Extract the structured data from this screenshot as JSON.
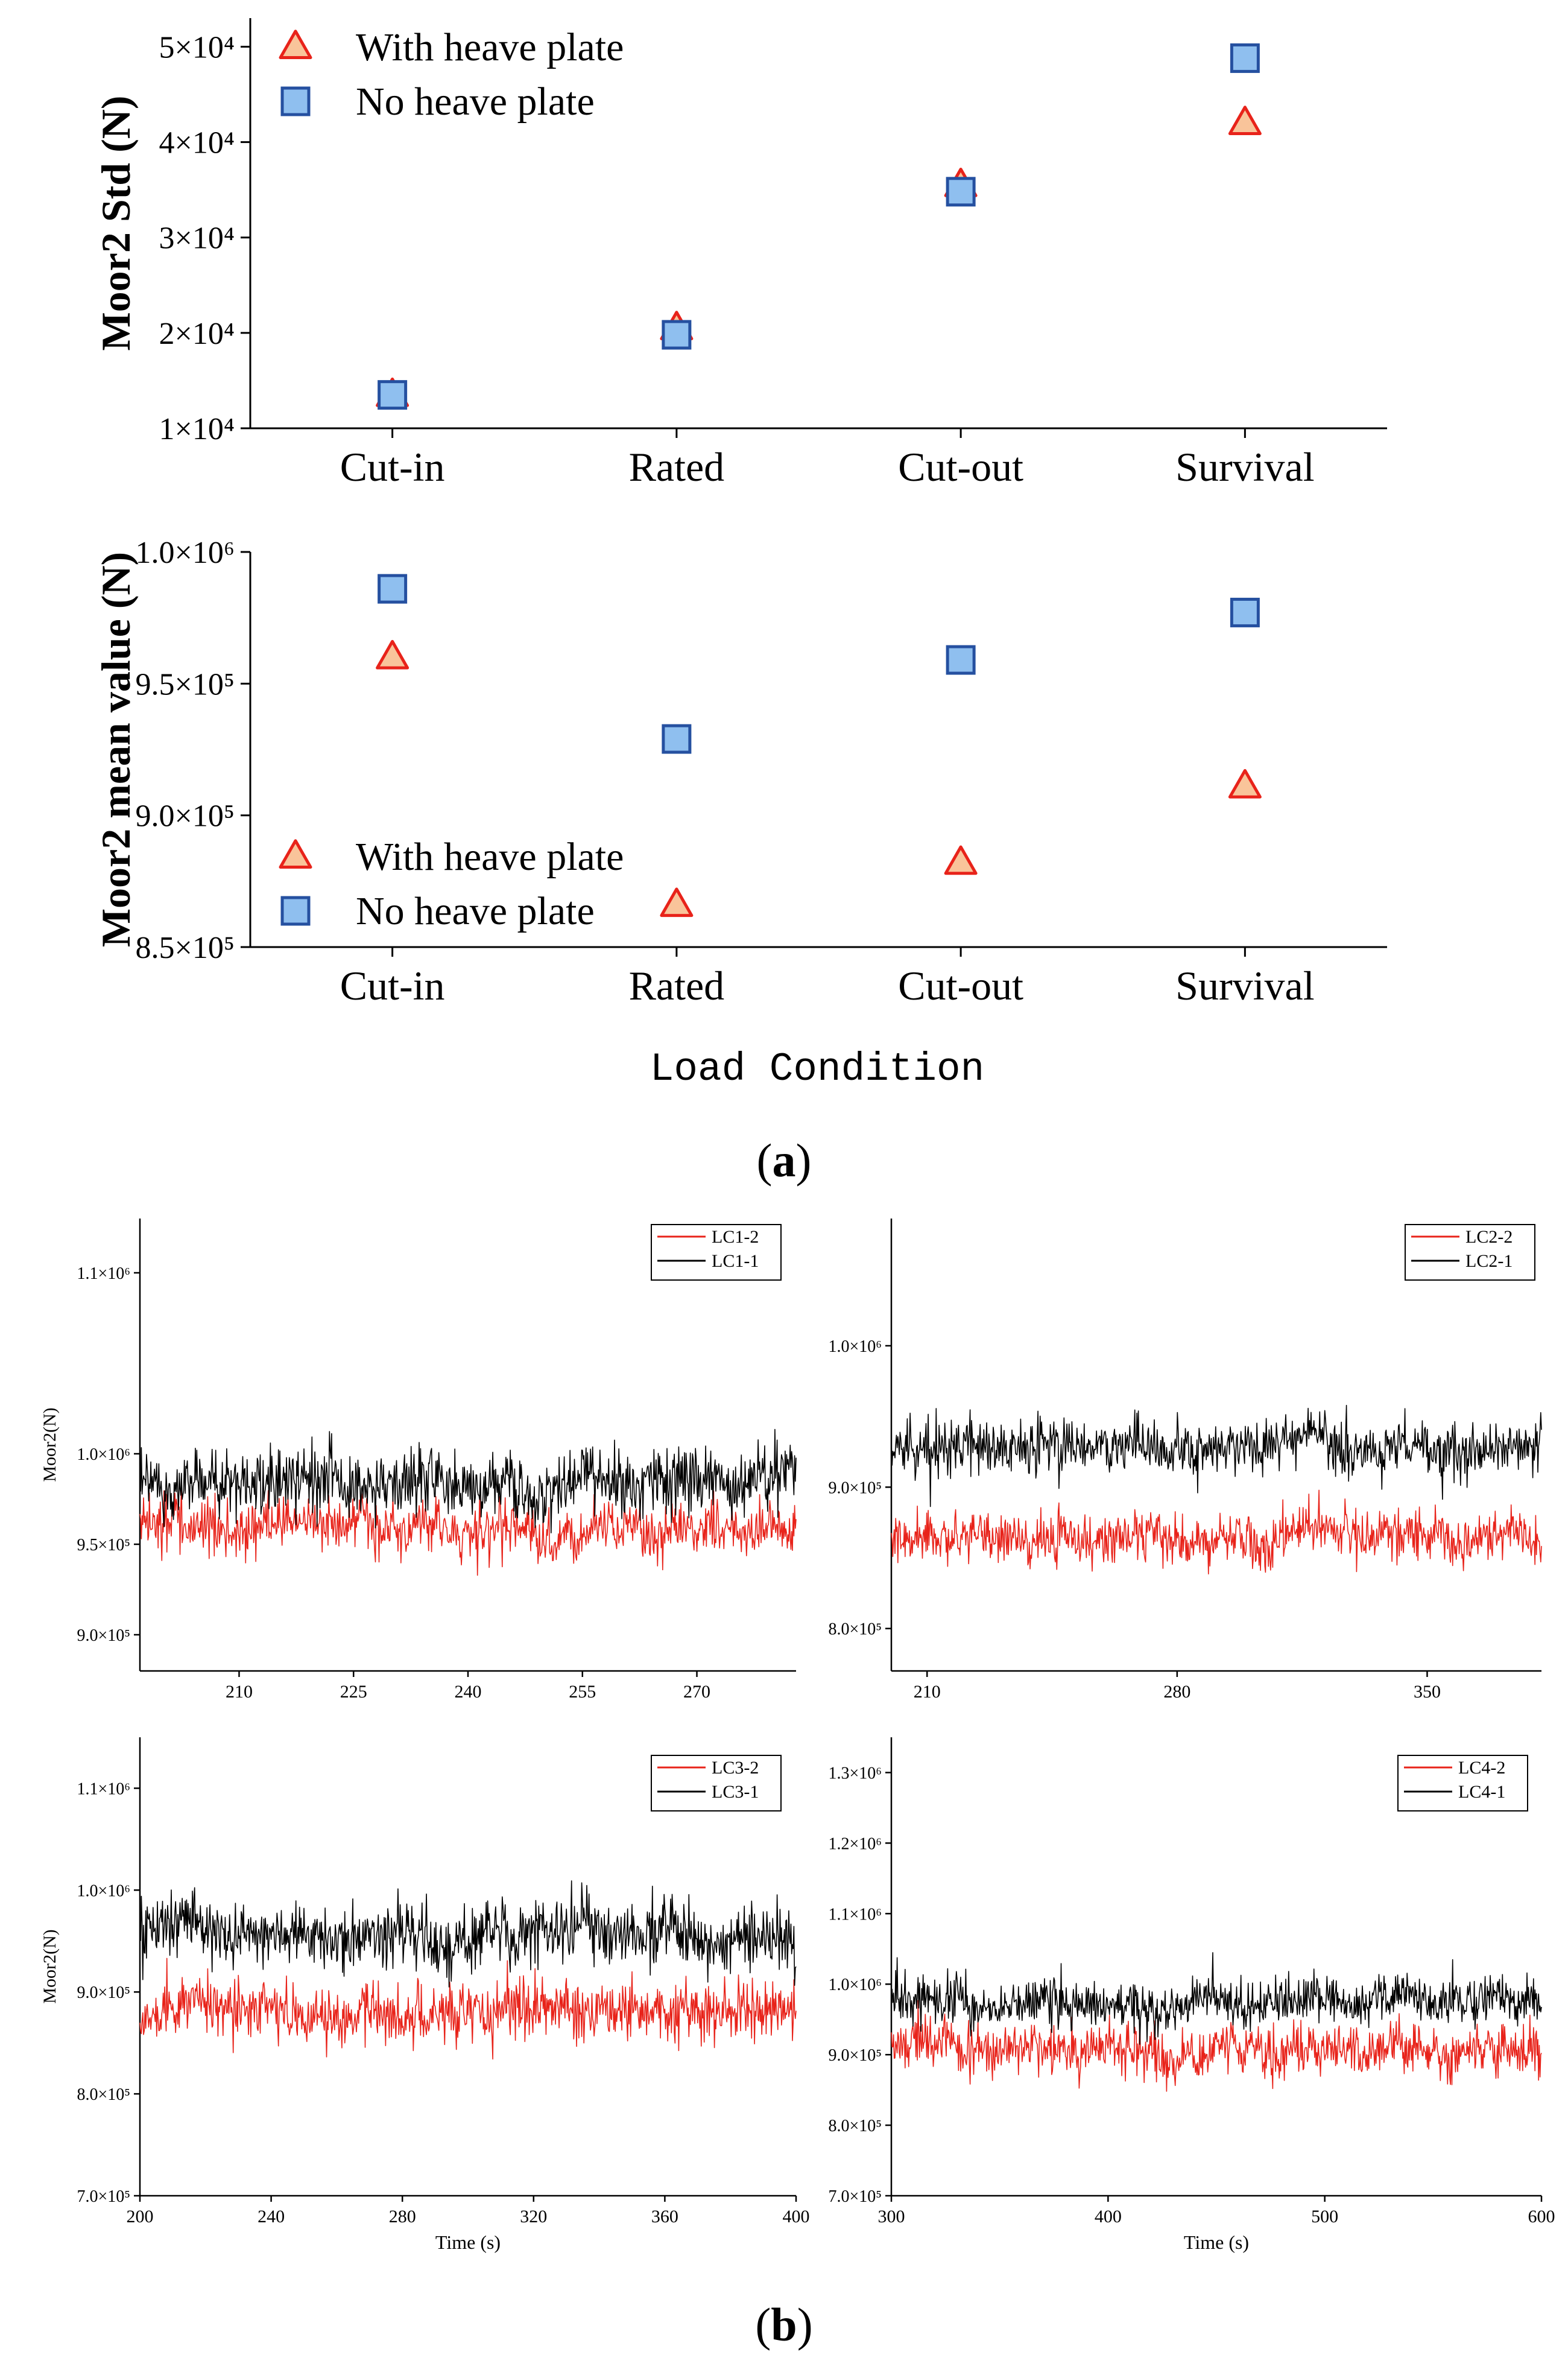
{
  "panel_labels": {
    "a": "a",
    "b": "b"
  },
  "colors": {
    "triangle_fill": "#f9c49a",
    "triangle_stroke": "#e8231a",
    "square_fill": "#8fbfef",
    "square_stroke": "#2550a0",
    "line_red": "#e8231a",
    "line_black": "#000000"
  },
  "chart_data": [
    {
      "id": "std",
      "type": "scatter",
      "title": "",
      "ylabel": "Moor2 Std (N)",
      "categories": [
        "Cut-in",
        "Rated",
        "Cut-out",
        "Survival"
      ],
      "ylim": [
        10000,
        53000
      ],
      "yticks": [
        {
          "value": 10000,
          "label": "1×10⁴"
        },
        {
          "value": 20000,
          "label": "2×10⁴"
        },
        {
          "value": 30000,
          "label": "3×10⁴"
        },
        {
          "value": 40000,
          "label": "4×10⁴"
        },
        {
          "value": 50000,
          "label": "5×10⁴"
        }
      ],
      "series": [
        {
          "name": "With heave plate",
          "marker": "triangle",
          "values": [
            13500,
            20500,
            35500,
            42000
          ]
        },
        {
          "name": "No heave plate",
          "marker": "square",
          "values": [
            13500,
            19800,
            34800,
            48800
          ]
        }
      ],
      "legend": "top-left"
    },
    {
      "id": "mean",
      "type": "scatter",
      "ylabel": "Moor2 mean value (N)",
      "xlabel": "Load Condition",
      "categories": [
        "Cut-in",
        "Rated",
        "Cut-out",
        "Survival"
      ],
      "ylim": [
        850000,
        1000000
      ],
      "yticks": [
        {
          "value": 850000,
          "label": "8.5×10⁵"
        },
        {
          "value": 900000,
          "label": "9.0×10⁵"
        },
        {
          "value": 950000,
          "label": "9.5×10⁵"
        },
        {
          "value": 1000000,
          "label": "1.0×10⁶"
        }
      ],
      "series": [
        {
          "name": "With heave plate",
          "marker": "triangle",
          "values": [
            960000,
            866000,
            882000,
            911000
          ]
        },
        {
          "name": "No heave plate",
          "marker": "square",
          "values": [
            986000,
            929000,
            959000,
            977000
          ]
        }
      ],
      "legend": "bottom-left"
    },
    {
      "id": "lc1",
      "type": "line",
      "ylabel": "Moor2(N)",
      "xlabel": "",
      "xlim": [
        197,
        283
      ],
      "ylim": [
        880000,
        1130000
      ],
      "xticks": [
        210,
        225,
        240,
        255,
        270
      ],
      "yticks": [
        {
          "value": 900000,
          "label": "9.0×10⁵"
        },
        {
          "value": 950000,
          "label": "9.5×10⁵"
        },
        {
          "value": 1000000,
          "label": "1.0×10⁶"
        },
        {
          "value": 1100000,
          "label": "1.1×10⁶"
        }
      ],
      "series": [
        {
          "name": "LC1-2",
          "color": "red",
          "mean": 960000,
          "amp": 18000
        },
        {
          "name": "LC1-1",
          "color": "black",
          "mean": 986000,
          "amp": 22000
        }
      ]
    },
    {
      "id": "lc2",
      "type": "line",
      "ylabel": "",
      "xlabel": "",
      "xlim": [
        200,
        382
      ],
      "ylim": [
        770000,
        1090000
      ],
      "xticks": [
        210,
        280,
        350
      ],
      "yticks": [
        {
          "value": 800000,
          "label": "8.0×10⁵"
        },
        {
          "value": 900000,
          "label": "9.0×10⁵"
        },
        {
          "value": 1000000,
          "label": "1.0×10⁶"
        }
      ],
      "series": [
        {
          "name": "LC2-2",
          "color": "red",
          "mean": 866000,
          "amp": 22000
        },
        {
          "name": "LC2-1",
          "color": "black",
          "mean": 929000,
          "amp": 24000
        }
      ]
    },
    {
      "id": "lc3",
      "type": "line",
      "ylabel": "Moor2(N)",
      "xlabel": "Time (s)",
      "xlim": [
        200,
        400
      ],
      "ylim": [
        700000,
        1150000
      ],
      "xticks": [
        200,
        240,
        280,
        320,
        360,
        400
      ],
      "yticks": [
        {
          "value": 700000,
          "label": "7.0×10⁵"
        },
        {
          "value": 800000,
          "label": "8.0×10⁵"
        },
        {
          "value": 900000,
          "label": "9.0×10⁵"
        },
        {
          "value": 1000000,
          "label": "1.0×10⁶"
        },
        {
          "value": 1100000,
          "label": "1.1×10⁶"
        }
      ],
      "series": [
        {
          "name": "LC3-2",
          "color": "red",
          "mean": 882000,
          "amp": 35000
        },
        {
          "name": "LC3-1",
          "color": "black",
          "mean": 959000,
          "amp": 38000
        }
      ]
    },
    {
      "id": "lc4",
      "type": "line",
      "ylabel": "",
      "xlabel": "Time (s)",
      "xlim": [
        300,
        600
      ],
      "ylim": [
        700000,
        1350000
      ],
      "xticks": [
        300,
        400,
        500,
        600
      ],
      "yticks": [
        {
          "value": 700000,
          "label": "7.0×10⁵"
        },
        {
          "value": 800000,
          "label": "8.0×10⁵"
        },
        {
          "value": 900000,
          "label": "9.0×10⁵"
        },
        {
          "value": 1000000,
          "label": "1.0×10⁶"
        },
        {
          "value": 1100000,
          "label": "1.1×10⁶"
        },
        {
          "value": 1200000,
          "label": "1.2×10⁶"
        },
        {
          "value": 1300000,
          "label": "1.3×10⁶"
        }
      ],
      "series": [
        {
          "name": "LC4-2",
          "color": "red",
          "mean": 911000,
          "amp": 45000
        },
        {
          "name": "LC4-1",
          "color": "black",
          "mean": 977000,
          "amp": 42000
        }
      ]
    }
  ]
}
